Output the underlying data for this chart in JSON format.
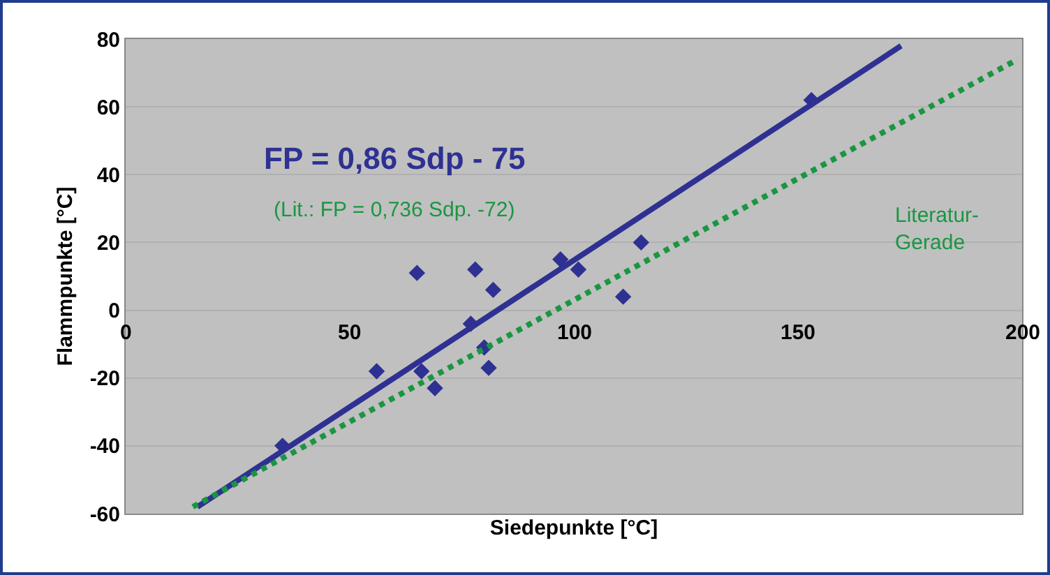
{
  "chart_data": {
    "type": "scatter",
    "xlabel": "Siedepunkte [°C]",
    "ylabel": "Flammpunkte [°C]",
    "xlim": [
      0,
      200
    ],
    "xticks": [
      0,
      50,
      100,
      150,
      200
    ],
    "ylim": [
      -60,
      80
    ],
    "yticks": [
      -60,
      -40,
      -20,
      0,
      20,
      40,
      60,
      80
    ],
    "grid": "y",
    "series": [
      {
        "marker": "diamond",
        "color": "#2e3192",
        "x": [
          35,
          56,
          65,
          66,
          69,
          77,
          78,
          80,
          81,
          82,
          97,
          101,
          111,
          115,
          153
        ],
        "values": [
          -40,
          -18,
          11,
          -18,
          -23,
          -4,
          12,
          -11,
          -17,
          6,
          15,
          12,
          4,
          20,
          62
        ]
      },
      {
        "type": "line",
        "marker": "none",
        "line_style": "solid",
        "color": "#2e3192",
        "x": [
          16,
          173
        ],
        "values": [
          -58,
          78
        ]
      },
      {
        "type": "line",
        "marker": "none",
        "line_style": "dotted",
        "color": "#1a9641",
        "x": [
          15,
          199
        ],
        "values": [
          -58,
          74
        ]
      }
    ],
    "annotations": [
      "FP = 0,86 Sdp - 75",
      "(Lit.: FP = 0,736 Sdp. -72)",
      "Literatur-\nGerade"
    ]
  }
}
